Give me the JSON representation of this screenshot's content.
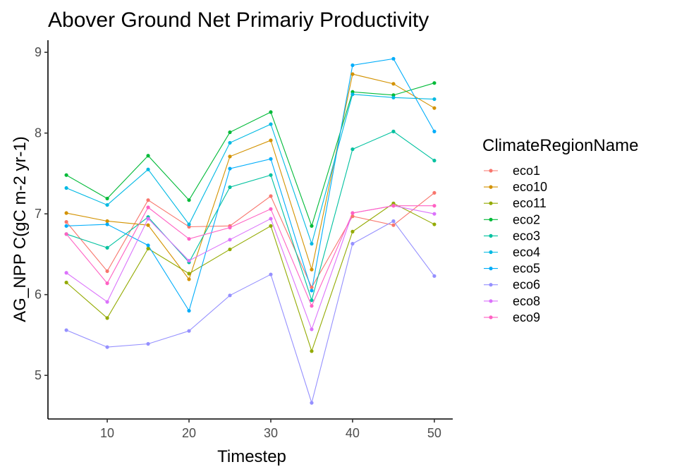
{
  "chart_data": {
    "type": "line",
    "title": "Abover Ground Net Primariy Productivity",
    "xlabel": "Timestep",
    "ylabel": "AG_NPP C(gC m-2 yr-1)",
    "xlim": [
      2.75,
      52.25
    ],
    "ylim": [
      4.46,
      9.15
    ],
    "xticks": [
      10,
      20,
      30,
      40,
      50
    ],
    "yticks": [
      5,
      6,
      7,
      8,
      9
    ],
    "grid": false,
    "legend_title": "ClimateRegionName",
    "legend_position": "right",
    "x": [
      5,
      10,
      15,
      20,
      25,
      30,
      35,
      40,
      45,
      50
    ],
    "series": [
      {
        "name": "eco1",
        "color": "#F8766D",
        "values": [
          6.9,
          6.29,
          7.17,
          6.84,
          6.85,
          7.22,
          6.09,
          6.97,
          6.86,
          7.26
        ]
      },
      {
        "name": "eco10",
        "color": "#D39200",
        "values": [
          7.01,
          6.91,
          6.86,
          6.19,
          7.71,
          7.91,
          6.31,
          8.73,
          8.61,
          8.31
        ]
      },
      {
        "name": "eco11",
        "color": "#93AA00",
        "values": [
          6.15,
          5.71,
          6.57,
          6.26,
          6.56,
          6.85,
          5.3,
          6.78,
          7.13,
          6.87
        ]
      },
      {
        "name": "eco2",
        "color": "#00BA38",
        "values": [
          7.48,
          7.19,
          7.72,
          7.17,
          8.01,
          8.26,
          6.85,
          8.51,
          8.47,
          8.62
        ]
      },
      {
        "name": "eco3",
        "color": "#00C19F",
        "values": [
          6.75,
          6.58,
          6.96,
          6.4,
          7.33,
          7.48,
          5.93,
          7.8,
          8.02,
          7.66
        ]
      },
      {
        "name": "eco4",
        "color": "#00B9E3",
        "values": [
          7.32,
          7.11,
          7.55,
          6.87,
          7.88,
          8.11,
          6.63,
          8.48,
          8.44,
          8.42
        ]
      },
      {
        "name": "eco5",
        "color": "#00ADFA",
        "values": [
          6.85,
          6.87,
          6.61,
          5.8,
          7.56,
          7.68,
          6.05,
          8.84,
          8.92,
          8.02
        ]
      },
      {
        "name": "eco6",
        "color": "#9590FF",
        "values": [
          5.56,
          5.35,
          5.39,
          5.55,
          5.99,
          6.25,
          4.66,
          6.63,
          6.91,
          6.23
        ]
      },
      {
        "name": "eco8",
        "color": "#DB72FB",
        "values": [
          6.27,
          5.91,
          6.94,
          6.42,
          6.68,
          6.94,
          5.57,
          7.01,
          7.1,
          7.0
        ]
      },
      {
        "name": "eco9",
        "color": "#FF61C3",
        "values": [
          6.75,
          6.14,
          7.08,
          6.69,
          6.83,
          7.06,
          5.86,
          7.01,
          7.1,
          7.1
        ]
      }
    ]
  }
}
